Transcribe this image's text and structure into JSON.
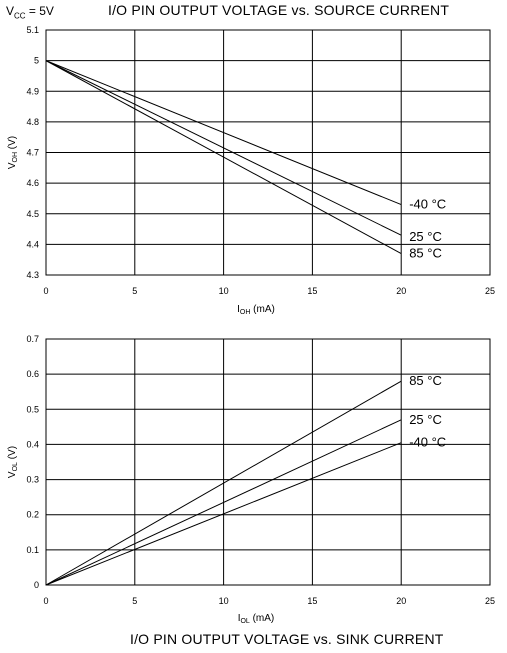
{
  "header": {
    "supply_main": "V",
    "supply_sub": "CC",
    "supply_value": " = 5V",
    "title": "I/O PIN OUTPUT VOLTAGE vs. SOURCE CURRENT"
  },
  "footer": {
    "title": "I/O PIN OUTPUT VOLTAGE vs. SINK CURRENT"
  },
  "chart_data": [
    {
      "type": "line",
      "title": "I/O PIN OUTPUT VOLTAGE vs. SOURCE CURRENT",
      "xlabel": "IOH (mA)",
      "ylabel": "VOH (V)",
      "xlabel_parts": {
        "main": "I",
        "sub": "OH",
        "rest": " (mA)"
      },
      "ylabel_parts": {
        "main": "V",
        "sub": "OH",
        "rest": " (V)"
      },
      "xlim": [
        0,
        25
      ],
      "ylim": [
        4.3,
        5.1
      ],
      "xticks": [
        "0",
        "5",
        "10",
        "15",
        "20",
        "25"
      ],
      "yticks": [
        "5.1",
        "5",
        "4.9",
        "4.8",
        "4.7",
        "4.6",
        "4.5",
        "4.4",
        "4.3"
      ],
      "xtick_values": [
        0,
        5,
        10,
        15,
        20,
        25
      ],
      "ytick_values": [
        5.1,
        5.0,
        4.9,
        4.8,
        4.7,
        4.6,
        4.5,
        4.4,
        4.3
      ],
      "grid": true,
      "series": [
        {
          "name": "-40 °C",
          "x": [
            0,
            20
          ],
          "y": [
            5.0,
            4.53
          ]
        },
        {
          "name": "25 °C",
          "x": [
            0,
            20
          ],
          "y": [
            5.0,
            4.43
          ]
        },
        {
          "name": "85 °C",
          "x": [
            0,
            20
          ],
          "y": [
            5.0,
            4.37
          ]
        }
      ]
    },
    {
      "type": "line",
      "title": "I/O PIN OUTPUT VOLTAGE vs. SINK CURRENT",
      "xlabel": "IOL (mA)",
      "ylabel": "VOL (V)",
      "xlabel_parts": {
        "main": "I",
        "sub": "OL",
        "rest": " (mA)"
      },
      "ylabel_parts": {
        "main": "V",
        "sub": "OL",
        "rest": " (V)"
      },
      "xlim": [
        0,
        25
      ],
      "ylim": [
        0,
        0.7
      ],
      "xticks": [
        "0",
        "5",
        "10",
        "15",
        "20",
        "25"
      ],
      "yticks": [
        "0.7",
        "0.6",
        "0.5",
        "0.4",
        "0.3",
        "0.2",
        "0.1",
        "0"
      ],
      "xtick_values": [
        0,
        5,
        10,
        15,
        20,
        25
      ],
      "ytick_values": [
        0.7,
        0.6,
        0.5,
        0.4,
        0.3,
        0.2,
        0.1,
        0.0
      ],
      "grid": true,
      "series": [
        {
          "name": "85 °C",
          "x": [
            0,
            20
          ],
          "y": [
            0.0,
            0.58
          ]
        },
        {
          "name": "25 °C",
          "x": [
            0,
            20
          ],
          "y": [
            0.0,
            0.47
          ]
        },
        {
          "name": "-40 °C",
          "x": [
            0,
            20
          ],
          "y": [
            0.0,
            0.405
          ]
        }
      ]
    }
  ]
}
